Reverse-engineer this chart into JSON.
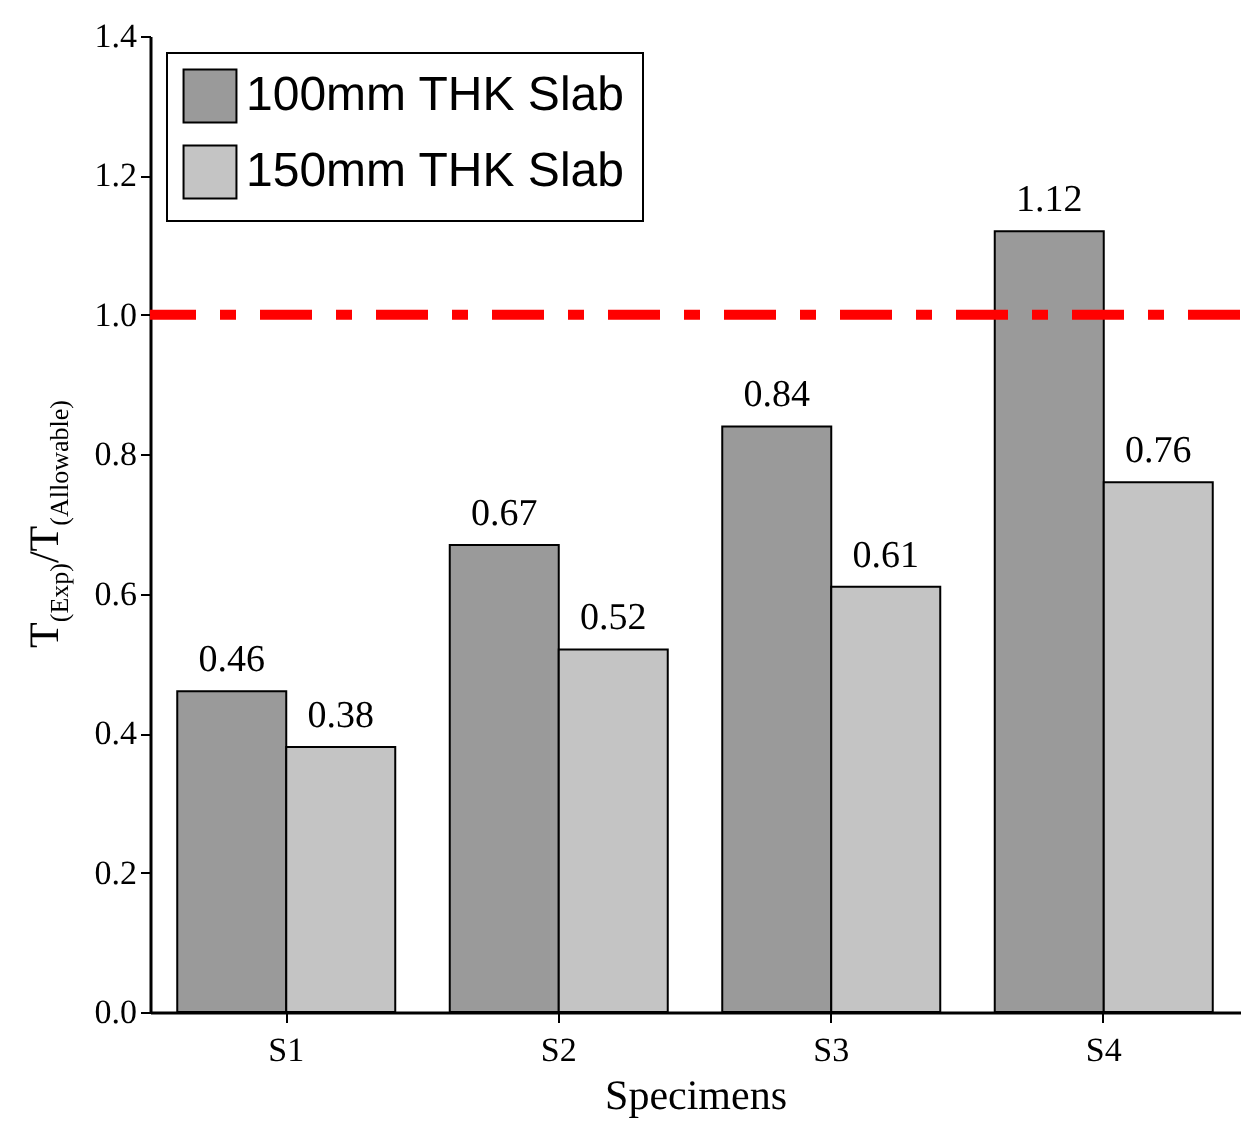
{
  "chart_data": {
    "type": "bar",
    "xlabel": "Specimens",
    "ylabel": "T$_{(Exp)}$/T$_{(Allowable)}$",
    "categories": [
      "S1",
      "S2",
      "S3",
      "S4"
    ],
    "series": [
      {
        "name": "100mm THK Slab",
        "color": "#9a9a9a",
        "values": [
          0.46,
          0.67,
          0.84,
          1.12
        ]
      },
      {
        "name": "150mm THK Slab",
        "color": "#c4c4c4",
        "values": [
          0.38,
          0.52,
          0.61,
          0.76
        ]
      }
    ],
    "ylim": [
      0,
      1.4
    ],
    "yticks": [
      {
        "value": 0,
        "label": "0.0"
      },
      {
        "value": 0.2,
        "label": "0.2"
      },
      {
        "value": 0.4,
        "label": "0.4"
      },
      {
        "value": 0.6,
        "label": "0.6"
      },
      {
        "value": 0.8,
        "label": "0.8"
      },
      {
        "value": 1.0,
        "label": "1.0"
      },
      {
        "value": 1.2,
        "label": "1.2"
      },
      {
        "value": 1.4,
        "label": "1.4"
      }
    ],
    "ref_lines": [
      {
        "axis": "y",
        "value": 1.0,
        "color": "#ff0000",
        "line_style": "dashed"
      }
    ],
    "data_labels": true,
    "legend": "top left",
    "grid": false
  }
}
